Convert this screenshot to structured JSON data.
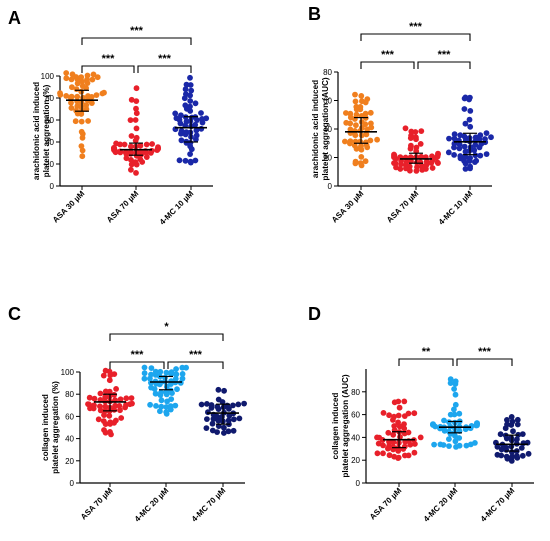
{
  "chart_data": [
    {
      "type": "scatter",
      "panel": "A",
      "ylabel_line1": "arachidonic acid induced",
      "ylabel_line2": "platelet aggregation (%)",
      "ylim": [
        0,
        100
      ],
      "yticks": [
        0,
        20,
        40,
        60,
        80,
        100
      ],
      "categories": [
        "ASA 30 µM",
        "ASA 70 µM",
        "4-MC 10 µM"
      ],
      "colors": [
        "#f07f1e",
        "#e8202a",
        "#1a28a8"
      ],
      "medians": [
        78,
        33,
        53
      ],
      "iqr": [
        [
          68,
          87
        ],
        [
          28,
          39
        ],
        [
          40,
          63
        ]
      ],
      "n": [
        55,
        55,
        55
      ],
      "ranges": [
        [
          24,
          104
        ],
        [
          12,
          92
        ],
        [
          21,
          104
        ]
      ],
      "comparisons": [
        {
          "from": 0,
          "to": 1,
          "label": "***",
          "level": 1
        },
        {
          "from": 1,
          "to": 2,
          "label": "***",
          "level": 1
        },
        {
          "from": 0,
          "to": 2,
          "label": "***",
          "level": 2
        }
      ]
    },
    {
      "type": "scatter",
      "panel": "B",
      "ylabel_line1": "arachidonic acid induced",
      "ylabel_line2": "platelet aggregation (AUC)",
      "ylim": [
        0,
        80
      ],
      "yticks": [
        0,
        20,
        40,
        60,
        80
      ],
      "categories": [
        "ASA 30 µM",
        "ASA 70 µM",
        "4-MC 10 µM"
      ],
      "colors": [
        "#f07f1e",
        "#e8202a",
        "#1a28a8"
      ],
      "medians": [
        38,
        19,
        31
      ],
      "iqr": [
        [
          30,
          48
        ],
        [
          16,
          23
        ],
        [
          22,
          37
        ]
      ],
      "n": [
        55,
        55,
        55
      ],
      "ranges": [
        [
          12,
          66
        ],
        [
          9,
          45
        ],
        [
          11,
          65
        ]
      ],
      "comparisons": [
        {
          "from": 0,
          "to": 1,
          "label": "***",
          "level": 1
        },
        {
          "from": 1,
          "to": 2,
          "label": "***",
          "level": 1
        },
        {
          "from": 0,
          "to": 2,
          "label": "***",
          "level": 2
        }
      ]
    },
    {
      "type": "scatter",
      "panel": "C",
      "ylabel_line1": "collagen induced",
      "ylabel_line2": "platelet aggregation (%)",
      "ylim": [
        0,
        100
      ],
      "yticks": [
        0,
        20,
        40,
        60,
        80,
        100
      ],
      "categories": [
        "ASA 70 µM",
        "4-MC 20 µM",
        "4-MC 70 µM"
      ],
      "colors": [
        "#e8202a",
        "#1da6ee",
        "#101a6e"
      ],
      "medians": [
        73,
        91,
        63
      ],
      "iqr": [
        [
          65,
          80
        ],
        [
          84,
          96
        ],
        [
          53,
          71
        ]
      ],
      "n": [
        55,
        55,
        40
      ],
      "ranges": [
        [
          43,
          102
        ],
        [
          61,
          104
        ],
        [
          45,
          97
        ]
      ],
      "comparisons": [
        {
          "from": 0,
          "to": 1,
          "label": "***",
          "level": 1
        },
        {
          "from": 1,
          "to": 2,
          "label": "***",
          "level": 1
        },
        {
          "from": 0,
          "to": 2,
          "label": "*",
          "level": 2
        }
      ]
    },
    {
      "type": "scatter",
      "panel": "D",
      "ylabel_line1": "collagen induced",
      "ylabel_line2": "platelet aggregation (AUC)",
      "ylim": [
        0,
        100
      ],
      "yticks": [
        0,
        20,
        40,
        60,
        80
      ],
      "categories": [
        "ASA 70 µM",
        "4-MC 20 µM",
        "4-MC 70 µM"
      ],
      "colors": [
        "#e8202a",
        "#1da6ee",
        "#101a6e"
      ],
      "medians": [
        38,
        49,
        34
      ],
      "iqr": [
        [
          31,
          45
        ],
        [
          44,
          54
        ],
        [
          28,
          42
        ]
      ],
      "n": [
        55,
        55,
        40
      ],
      "ranges": [
        [
          20,
          72
        ],
        [
          28,
          92
        ],
        [
          18,
          60
        ]
      ],
      "comparisons": [
        {
          "from": 0,
          "to": 1,
          "label": "**",
          "level": 1
        },
        {
          "from": 1,
          "to": 2,
          "label": "***",
          "level": 1
        }
      ]
    }
  ]
}
